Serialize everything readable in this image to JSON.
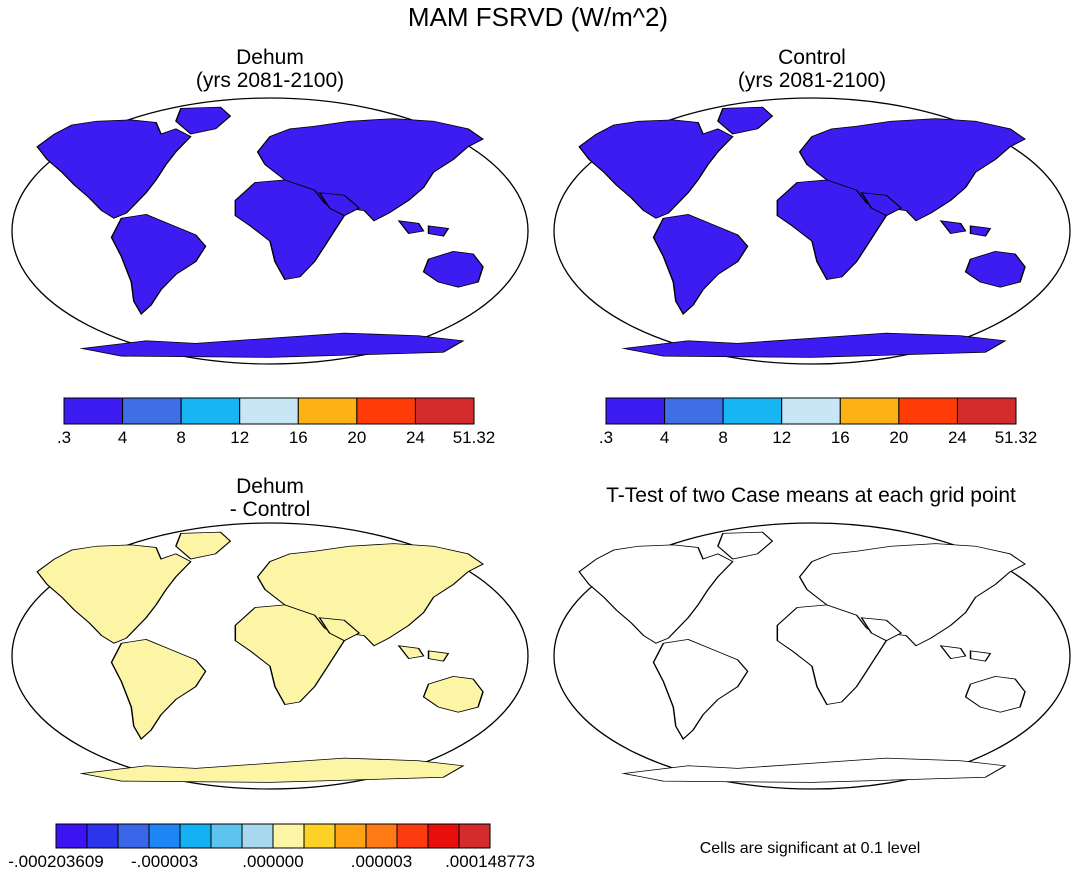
{
  "title": "MAM FSRVD (W/m^2)",
  "panels": [
    {
      "title_line1": "Dehum",
      "title_line2": "(yrs 2081-2100)"
    },
    {
      "title_line1": "Control",
      "title_line2": "(yrs 2081-2100)"
    },
    {
      "title_line1": "Dehum",
      "title_line2": "- Control"
    },
    {
      "title_line1": "T-Test of two Case means at each grid point",
      "title_line2": ""
    }
  ],
  "note": "Cells are significant at 0.1 level",
  "colorbar_abs": {
    "colors": [
      "#3c1cf0",
      "#3e6fe6",
      "#17b6f2",
      "#c8e6f6",
      "#fcb214",
      "#ff3c08",
      "#d42c2c"
    ],
    "labels": [
      ".3",
      "4",
      "8",
      "12",
      "16",
      "20",
      "24",
      "51.32"
    ]
  },
  "colorbar_diff": {
    "colors": [
      "#3c14f4",
      "#2c34ec",
      "#3a66ea",
      "#1e86f4",
      "#13b0f2",
      "#5cc4ee",
      "#a8d8ee",
      "#fdf5a6",
      "#fed126",
      "#fea414",
      "#fd7a14",
      "#fc3c0e",
      "#e80e0a",
      "#d42c2c"
    ],
    "labels": [
      "-.000203609",
      "-.000003",
      ".000000",
      ".000003",
      ".000148773"
    ]
  },
  "land_colors": {
    "panel1": "#3c1cf0",
    "panel2": "#3c1cf0",
    "panel3": "#fdf5a6",
    "panel4": "#ffffff"
  }
}
